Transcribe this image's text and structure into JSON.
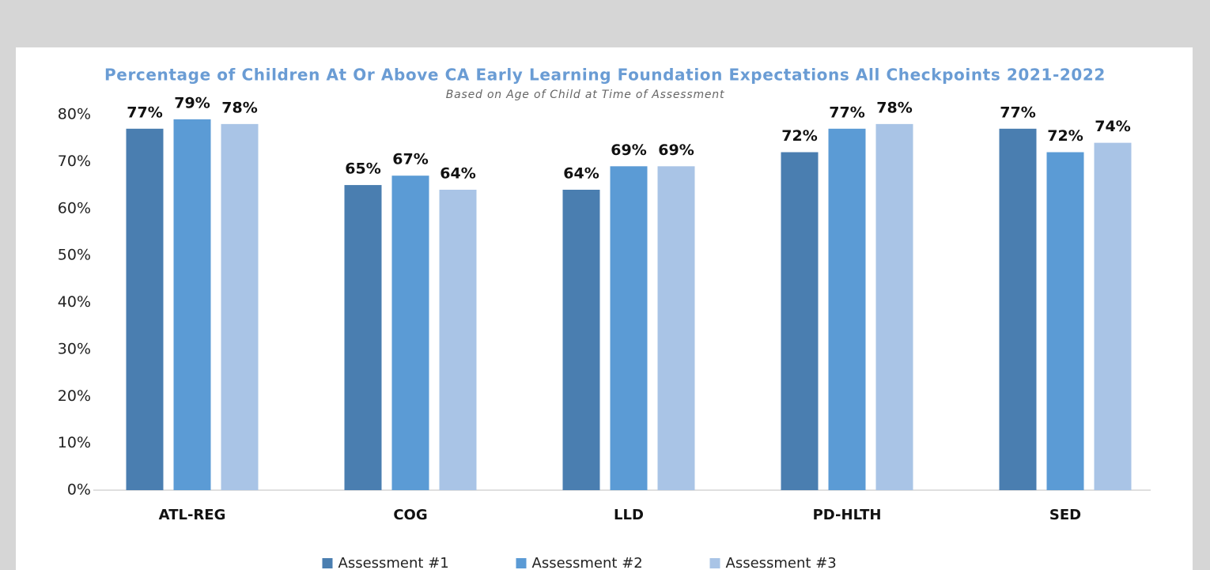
{
  "chart_data": {
    "type": "bar",
    "title": "Percentage of Children At Or Above CA Early Learning Foundation Expectations All Checkpoints 2021-2022",
    "subtitle": "Based on Age of Child at Time of Assessment",
    "categories": [
      "ATL-REG",
      "COG",
      "LLD",
      "PD-HLTH",
      "SED"
    ],
    "series": [
      {
        "name": "Assessment #1",
        "color": "#4a7eb0",
        "values": [
          77,
          65,
          64,
          72,
          77
        ],
        "value_labels": [
          "77%",
          "65%",
          "64%",
          "72%",
          "77%"
        ]
      },
      {
        "name": "Assessment #2",
        "color": "#5b9bd5",
        "values": [
          79,
          67,
          69,
          77,
          72
        ],
        "value_labels": [
          "79%",
          "67%",
          "69%",
          "77%",
          "72%"
        ]
      },
      {
        "name": "Assessment #3",
        "color": "#a9c4e6",
        "values": [
          78,
          64,
          69,
          78,
          74
        ],
        "value_labels": [
          "78%",
          "64%",
          "69%",
          "78%",
          "74%"
        ]
      }
    ],
    "ylim": [
      0,
      80
    ],
    "yticks": [
      {
        "value": 0,
        "label": "0%"
      },
      {
        "value": 10,
        "label": "10%"
      },
      {
        "value": 20,
        "label": "20%"
      },
      {
        "value": 30,
        "label": "30%"
      },
      {
        "value": 40,
        "label": "40%"
      },
      {
        "value": 50,
        "label": "50%"
      },
      {
        "value": 60,
        "label": "60%"
      },
      {
        "value": 70,
        "label": "70%"
      },
      {
        "value": 80,
        "label": "80%"
      }
    ],
    "grid": false,
    "legend": "bottom"
  }
}
